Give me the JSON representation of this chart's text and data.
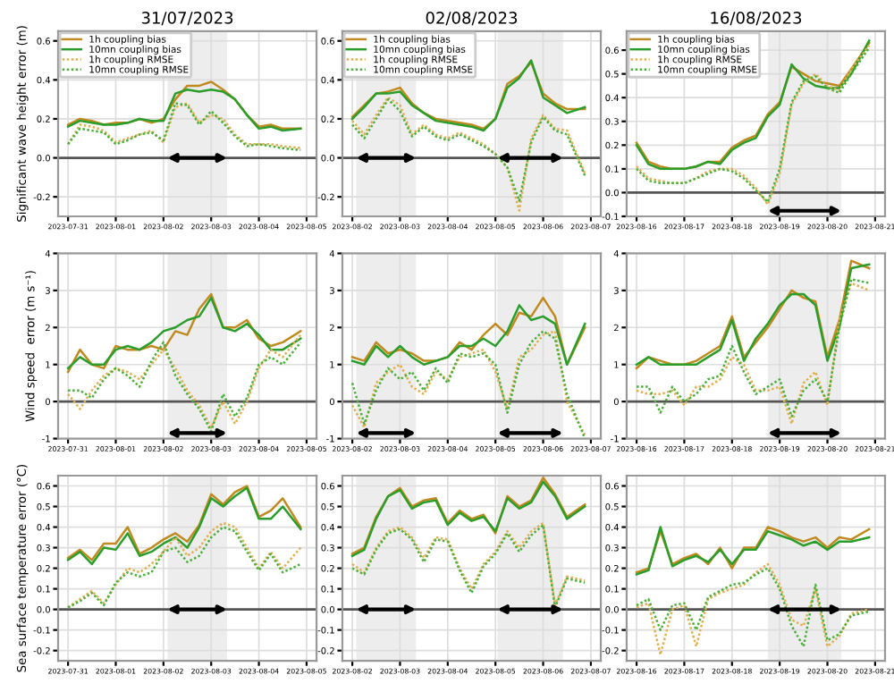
{
  "chart_data": [
    {
      "type": "line",
      "title": "31/07/2023",
      "ylabel": "Significant wave height error (m)",
      "legend": "top left",
      "grid": true,
      "x": [
        "2023-07-31T00:00",
        "2023-07-31T06:00",
        "2023-07-31T12:00",
        "2023-07-31T18:00",
        "2023-08-01T00:00",
        "2023-08-01T06:00",
        "2023-08-01T12:00",
        "2023-08-01T18:00",
        "2023-08-02T00:00",
        "2023-08-02T06:00",
        "2023-08-02T12:00",
        "2023-08-02T18:00",
        "2023-08-03T00:00",
        "2023-08-03T06:00",
        "2023-08-03T12:00",
        "2023-08-03T18:00",
        "2023-08-04T00:00",
        "2023-08-04T06:00",
        "2023-08-04T12:00",
        "2023-08-04T21:00"
      ],
      "xlim": [
        "2023-07-30T19:00",
        "2023-08-05T05:00"
      ],
      "xticks": [
        "2023-07-31",
        "2023-08-01",
        "2023-08-02",
        "2023-08-03",
        "2023-08-04",
        "2023-08-05"
      ],
      "ylim": [
        -0.3,
        0.65
      ],
      "yticks": [
        {
          "value": -0.2,
          "label": "-0.2"
        },
        {
          "value": 0,
          "label": "0.0"
        },
        0.2,
        0.4,
        0.6
      ],
      "ref_lines": [
        {
          "axis": "y",
          "value": 0,
          "color": "#555555"
        }
      ],
      "bands": [
        {
          "axis": "x",
          "from": "2023-08-02T02:00",
          "to": "2023-08-03T08:00",
          "color": "#000000"
        }
      ],
      "series": [
        {
          "name": "1h coupling bias",
          "color": "#c08a20",
          "line_style": "solid",
          "values": [
            0.17,
            0.2,
            0.19,
            0.17,
            0.18,
            0.18,
            0.2,
            0.18,
            0.2,
            0.3,
            0.37,
            0.37,
            0.39,
            0.35,
            0.3,
            0.22,
            0.16,
            0.17,
            0.15,
            0.15
          ]
        },
        {
          "name": "10mn coupling bias",
          "color": "#2a9d2a",
          "line_style": "solid",
          "values": [
            0.16,
            0.19,
            0.18,
            0.17,
            0.17,
            0.18,
            0.2,
            0.19,
            0.19,
            0.33,
            0.35,
            0.34,
            0.35,
            0.34,
            0.3,
            0.22,
            0.15,
            0.16,
            0.14,
            0.15
          ]
        },
        {
          "name": "1h coupling RMSE",
          "color": "#e0b050",
          "line_style": "dotted",
          "values": [
            0.07,
            0.17,
            0.16,
            0.14,
            0.08,
            0.1,
            0.12,
            0.14,
            0.08,
            0.26,
            0.28,
            0.18,
            0.22,
            0.2,
            0.12,
            0.07,
            0.07,
            0.07,
            0.06,
            0.05
          ]
        },
        {
          "name": "10mn coupling RMSE",
          "color": "#4caf3c",
          "line_style": "dotted",
          "values": [
            0.07,
            0.15,
            0.14,
            0.13,
            0.07,
            0.09,
            0.12,
            0.13,
            0.09,
            0.28,
            0.27,
            0.17,
            0.24,
            0.18,
            0.11,
            0.06,
            0.07,
            0.06,
            0.05,
            0.04
          ]
        }
      ]
    },
    {
      "type": "line",
      "title": "02/08/2023",
      "legend": "top left",
      "grid": true,
      "x": [
        "2023-08-02T00:00",
        "2023-08-02T06:00",
        "2023-08-02T12:00",
        "2023-08-02T18:00",
        "2023-08-03T00:00",
        "2023-08-03T06:00",
        "2023-08-03T12:00",
        "2023-08-03T18:00",
        "2023-08-04T00:00",
        "2023-08-04T06:00",
        "2023-08-04T12:00",
        "2023-08-04T18:00",
        "2023-08-05T00:00",
        "2023-08-05T06:00",
        "2023-08-05T12:00",
        "2023-08-05T18:00",
        "2023-08-06T00:00",
        "2023-08-06T06:00",
        "2023-08-06T12:00",
        "2023-08-06T21:00"
      ],
      "xlim": [
        "2023-08-01T19:00",
        "2023-08-07T05:00"
      ],
      "xticks": [
        "2023-08-02",
        "2023-08-03",
        "2023-08-04",
        "2023-08-05",
        "2023-08-06",
        "2023-08-07"
      ],
      "ylim": [
        -0.3,
        0.65
      ],
      "yticks": [
        {
          "value": -0.2,
          "label": "-0.2"
        },
        {
          "value": 0,
          "label": "0.0"
        },
        0.2,
        0.4,
        0.6
      ],
      "ref_lines": [
        {
          "axis": "y",
          "value": 0,
          "color": "#555555"
        }
      ],
      "bands": [
        {
          "axis": "x",
          "from": "2023-08-02T02:00",
          "to": "2023-08-03T08:00",
          "color": "#000000"
        },
        {
          "axis": "x",
          "from": "2023-08-05T01:00",
          "to": "2023-08-06T10:00",
          "color": "#000000"
        }
      ],
      "series": [
        {
          "name": "1h coupling bias",
          "color": "#c08a20",
          "line_style": "solid",
          "values": [
            0.21,
            0.27,
            0.33,
            0.34,
            0.36,
            0.28,
            0.23,
            0.2,
            0.19,
            0.18,
            0.17,
            0.15,
            0.2,
            0.38,
            0.42,
            0.49,
            0.33,
            0.28,
            0.25,
            0.25
          ]
        },
        {
          "name": "10mn coupling bias",
          "color": "#2a9d2a",
          "line_style": "solid",
          "values": [
            0.2,
            0.26,
            0.33,
            0.33,
            0.34,
            0.27,
            0.23,
            0.19,
            0.18,
            0.17,
            0.16,
            0.14,
            0.2,
            0.36,
            0.41,
            0.5,
            0.31,
            0.27,
            0.23,
            0.26
          ]
        },
        {
          "name": "1h coupling RMSE",
          "color": "#e0b050",
          "line_style": "dotted",
          "values": [
            0.19,
            0.12,
            0.22,
            0.31,
            0.27,
            0.12,
            0.17,
            0.12,
            0.1,
            0.13,
            0.1,
            0.07,
            0.02,
            -0.05,
            -0.27,
            0.1,
            0.22,
            0.15,
            0.14,
            -0.08
          ]
        },
        {
          "name": "10mn coupling RMSE",
          "color": "#4caf3c",
          "line_style": "dotted",
          "values": [
            0.17,
            0.1,
            0.2,
            0.3,
            0.24,
            0.11,
            0.16,
            0.11,
            0.09,
            0.12,
            0.09,
            0.06,
            0.02,
            -0.05,
            -0.22,
            0.08,
            0.21,
            0.14,
            0.12,
            -0.09
          ]
        }
      ]
    },
    {
      "type": "line",
      "title": "16/08/2023",
      "legend": "top left",
      "grid": true,
      "x": [
        "2023-08-16T00:00",
        "2023-08-16T06:00",
        "2023-08-16T12:00",
        "2023-08-16T18:00",
        "2023-08-17T00:00",
        "2023-08-17T06:00",
        "2023-08-17T12:00",
        "2023-08-17T18:00",
        "2023-08-18T00:00",
        "2023-08-18T06:00",
        "2023-08-18T12:00",
        "2023-08-18T18:00",
        "2023-08-19T00:00",
        "2023-08-19T06:00",
        "2023-08-19T12:00",
        "2023-08-19T18:00",
        "2023-08-20T00:00",
        "2023-08-20T06:00",
        "2023-08-20T12:00",
        "2023-08-20T21:00"
      ],
      "xlim": [
        "2023-08-15T19:00",
        "2023-08-21T05:00"
      ],
      "xticks": [
        "2023-08-16",
        "2023-08-17",
        "2023-08-18",
        "2023-08-19",
        "2023-08-20",
        "2023-08-21"
      ],
      "ylim": [
        -0.1,
        0.68
      ],
      "yticks": [
        {
          "value": -0.1,
          "label": "-0.1"
        },
        {
          "value": 0,
          "label": "0.0"
        },
        0.1,
        0.2,
        0.3,
        0.4,
        0.5,
        0.6
      ],
      "ref_lines": [
        {
          "axis": "y",
          "value": 0,
          "color": "#555555"
        }
      ],
      "bands": [
        {
          "axis": "x",
          "from": "2023-08-18T18:00",
          "to": "2023-08-20T07:00",
          "color": "#000000"
        }
      ],
      "series": [
        {
          "name": "1h coupling bias",
          "color": "#c08a20",
          "line_style": "solid",
          "values": [
            0.21,
            0.13,
            0.11,
            0.1,
            0.1,
            0.11,
            0.13,
            0.13,
            0.19,
            0.22,
            0.24,
            0.33,
            0.38,
            0.53,
            0.5,
            0.47,
            0.46,
            0.45,
            0.52,
            0.63
          ]
        },
        {
          "name": "10mn coupling bias",
          "color": "#2a9d2a",
          "line_style": "solid",
          "values": [
            0.2,
            0.12,
            0.1,
            0.1,
            0.1,
            0.11,
            0.13,
            0.12,
            0.18,
            0.21,
            0.23,
            0.32,
            0.37,
            0.54,
            0.48,
            0.45,
            0.44,
            0.44,
            0.5,
            0.64
          ]
        },
        {
          "name": "1h coupling RMSE",
          "color": "#e0b050",
          "line_style": "dotted",
          "values": [
            0.11,
            0.06,
            0.05,
            0.04,
            0.04,
            0.06,
            0.09,
            0.1,
            0.1,
            0.07,
            0.02,
            -0.05,
            0.08,
            0.37,
            0.46,
            0.5,
            0.45,
            0.43,
            0.52,
            0.62
          ]
        },
        {
          "name": "10mn coupling RMSE",
          "color": "#4caf3c",
          "line_style": "dotted",
          "values": [
            0.1,
            0.05,
            0.04,
            0.04,
            0.04,
            0.06,
            0.08,
            0.1,
            0.09,
            0.06,
            0.01,
            -0.04,
            0.1,
            0.38,
            0.47,
            0.49,
            0.44,
            0.42,
            0.5,
            0.61
          ]
        }
      ]
    },
    {
      "type": "line",
      "ylabel": "Wind speed  error (m s⁻¹)",
      "grid": true,
      "x": [
        "2023-07-31T00:00",
        "2023-07-31T06:00",
        "2023-07-31T12:00",
        "2023-07-31T18:00",
        "2023-08-01T00:00",
        "2023-08-01T06:00",
        "2023-08-01T12:00",
        "2023-08-01T18:00",
        "2023-08-02T00:00",
        "2023-08-02T06:00",
        "2023-08-02T12:00",
        "2023-08-02T18:00",
        "2023-08-03T00:00",
        "2023-08-03T06:00",
        "2023-08-03T12:00",
        "2023-08-03T18:00",
        "2023-08-04T00:00",
        "2023-08-04T06:00",
        "2023-08-04T12:00",
        "2023-08-04T21:00"
      ],
      "xlim": [
        "2023-07-30T19:00",
        "2023-08-05T05:00"
      ],
      "xticks": [
        "2023-07-31",
        "2023-08-01",
        "2023-08-02",
        "2023-08-03",
        "2023-08-04",
        "2023-08-05"
      ],
      "ylim": [
        -1,
        4
      ],
      "yticks": [
        -1,
        0,
        1,
        2,
        3,
        4
      ],
      "ref_lines": [
        {
          "axis": "y",
          "value": 0,
          "color": "#555555"
        }
      ],
      "bands": [
        {
          "axis": "x",
          "from": "2023-08-02T02:00",
          "to": "2023-08-03T08:00",
          "color": "#000000"
        }
      ],
      "series": [
        {
          "color": "#c08a20",
          "line_style": "solid",
          "values": [
            0.8,
            1.4,
            1.0,
            0.9,
            1.5,
            1.4,
            1.4,
            1.5,
            1.4,
            1.9,
            1.8,
            2.5,
            2.9,
            2.0,
            2.0,
            2.2,
            1.7,
            1.5,
            1.6,
            1.9
          ]
        },
        {
          "color": "#2a9d2a",
          "line_style": "solid",
          "values": [
            0.9,
            1.2,
            1.0,
            1.0,
            1.4,
            1.5,
            1.4,
            1.6,
            1.9,
            2.0,
            2.2,
            2.3,
            2.8,
            2.0,
            1.9,
            2.1,
            1.8,
            1.4,
            1.4,
            1.7
          ]
        },
        {
          "color": "#e0b050",
          "line_style": "dotted",
          "values": [
            0.2,
            -0.2,
            0.3,
            0.7,
            0.9,
            0.8,
            0.6,
            1.0,
            1.4,
            0.9,
            0.3,
            -0.1,
            -0.7,
            0.0,
            -0.6,
            0.0,
            0.9,
            1.4,
            1.2,
            1.8
          ]
        },
        {
          "color": "#4caf3c",
          "line_style": "dotted",
          "values": [
            0.3,
            0.3,
            0.1,
            0.6,
            0.9,
            0.7,
            0.4,
            1.1,
            1.6,
            0.7,
            0.2,
            -0.2,
            -0.8,
            0.2,
            -0.4,
            0.1,
            1.0,
            1.2,
            1.0,
            1.6
          ]
        }
      ]
    },
    {
      "type": "line",
      "grid": true,
      "x": [
        "2023-08-02T00:00",
        "2023-08-02T06:00",
        "2023-08-02T12:00",
        "2023-08-02T18:00",
        "2023-08-03T00:00",
        "2023-08-03T06:00",
        "2023-08-03T12:00",
        "2023-08-03T18:00",
        "2023-08-04T00:00",
        "2023-08-04T06:00",
        "2023-08-04T12:00",
        "2023-08-04T18:00",
        "2023-08-05T00:00",
        "2023-08-05T06:00",
        "2023-08-05T12:00",
        "2023-08-05T18:00",
        "2023-08-06T00:00",
        "2023-08-06T06:00",
        "2023-08-06T12:00",
        "2023-08-06T21:00"
      ],
      "xlim": [
        "2023-08-01T19:00",
        "2023-08-07T05:00"
      ],
      "xticks": [
        "2023-08-02",
        "2023-08-03",
        "2023-08-04",
        "2023-08-05",
        "2023-08-06",
        "2023-08-07"
      ],
      "ylim": [
        -1,
        4
      ],
      "yticks": [
        -1,
        0,
        1,
        2,
        3,
        4
      ],
      "ref_lines": [
        {
          "axis": "y",
          "value": 0,
          "color": "#555555"
        }
      ],
      "bands": [
        {
          "axis": "x",
          "from": "2023-08-02T02:00",
          "to": "2023-08-03T08:00",
          "color": "#000000"
        },
        {
          "axis": "x",
          "from": "2023-08-05T01:00",
          "to": "2023-08-06T10:00",
          "color": "#000000"
        }
      ],
      "series": [
        {
          "color": "#c08a20",
          "line_style": "solid",
          "values": [
            1.2,
            1.1,
            1.6,
            1.3,
            1.4,
            1.3,
            1.1,
            1.1,
            1.2,
            1.6,
            1.4,
            1.8,
            2.1,
            1.8,
            2.4,
            2.3,
            2.8,
            2.3,
            1.0,
            2.0
          ]
        },
        {
          "color": "#2a9d2a",
          "line_style": "solid",
          "values": [
            1.1,
            1.0,
            1.5,
            1.2,
            1.5,
            1.2,
            1.0,
            1.1,
            1.2,
            1.5,
            1.5,
            1.7,
            1.5,
            1.9,
            2.6,
            2.2,
            2.3,
            2.1,
            1.0,
            2.1
          ]
        },
        {
          "color": "#e0b050",
          "line_style": "dotted",
          "values": [
            -0.1,
            -0.7,
            0.5,
            0.8,
            1.0,
            0.4,
            0.2,
            0.8,
            0.6,
            1.2,
            1.3,
            1.4,
            0.8,
            -0.2,
            1.2,
            1.4,
            1.8,
            1.9,
            0.0,
            -0.9
          ]
        },
        {
          "color": "#4caf3c",
          "line_style": "dotted",
          "values": [
            0.5,
            -0.6,
            0.3,
            0.9,
            0.6,
            0.8,
            0.3,
            0.9,
            0.5,
            1.3,
            1.2,
            1.3,
            1.0,
            -0.3,
            1.0,
            1.6,
            1.9,
            1.7,
            0.2,
            -1.0
          ]
        }
      ]
    },
    {
      "type": "line",
      "grid": true,
      "x": [
        "2023-08-16T00:00",
        "2023-08-16T06:00",
        "2023-08-16T12:00",
        "2023-08-16T18:00",
        "2023-08-17T00:00",
        "2023-08-17T06:00",
        "2023-08-17T12:00",
        "2023-08-17T18:00",
        "2023-08-18T00:00",
        "2023-08-18T06:00",
        "2023-08-18T12:00",
        "2023-08-18T18:00",
        "2023-08-19T00:00",
        "2023-08-19T06:00",
        "2023-08-19T12:00",
        "2023-08-19T18:00",
        "2023-08-20T00:00",
        "2023-08-20T06:00",
        "2023-08-20T12:00",
        "2023-08-20T21:00"
      ],
      "xlim": [
        "2023-08-15T19:00",
        "2023-08-21T05:00"
      ],
      "xticks": [
        "2023-08-16",
        "2023-08-17",
        "2023-08-18",
        "2023-08-19",
        "2023-08-20",
        "2023-08-21"
      ],
      "ylim": [
        -1,
        4
      ],
      "yticks": [
        -1,
        0,
        1,
        2,
        3,
        4
      ],
      "ref_lines": [
        {
          "axis": "y",
          "value": 0,
          "color": "#555555"
        }
      ],
      "bands": [
        {
          "axis": "x",
          "from": "2023-08-18T18:00",
          "to": "2023-08-20T07:00",
          "color": "#000000"
        }
      ],
      "series": [
        {
          "color": "#c08a20",
          "line_style": "solid",
          "values": [
            0.9,
            1.2,
            1.1,
            1.0,
            1.0,
            1.1,
            1.3,
            1.5,
            2.3,
            1.2,
            1.6,
            2.0,
            2.5,
            3.0,
            2.8,
            2.7,
            1.2,
            2.2,
            3.8,
            3.6
          ]
        },
        {
          "color": "#2a9d2a",
          "line_style": "solid",
          "values": [
            1.0,
            1.2,
            1.0,
            1.0,
            1.0,
            1.0,
            1.2,
            1.4,
            2.2,
            1.1,
            1.7,
            2.1,
            2.6,
            2.9,
            2.9,
            2.6,
            1.1,
            2.0,
            3.6,
            3.7
          ]
        },
        {
          "color": "#e0b050",
          "line_style": "dotted",
          "values": [
            0.3,
            0.2,
            0.2,
            0.3,
            -0.1,
            0.4,
            0.4,
            0.6,
            1.2,
            1.0,
            0.3,
            0.3,
            0.4,
            -0.6,
            0.5,
            0.8,
            -0.1,
            2.2,
            3.2,
            3.0
          ]
        },
        {
          "color": "#4caf3c",
          "line_style": "dotted",
          "values": [
            0.4,
            0.4,
            -0.3,
            0.4,
            0.0,
            0.2,
            0.6,
            0.7,
            1.5,
            0.8,
            0.2,
            0.4,
            0.6,
            -0.4,
            0.3,
            0.6,
            0.0,
            2.0,
            3.3,
            3.2
          ]
        }
      ]
    },
    {
      "type": "line",
      "ylabel": "Sea surface temperature error (°C)",
      "grid": true,
      "x": [
        "2023-07-31T00:00",
        "2023-07-31T06:00",
        "2023-07-31T12:00",
        "2023-07-31T18:00",
        "2023-08-01T00:00",
        "2023-08-01T06:00",
        "2023-08-01T12:00",
        "2023-08-01T18:00",
        "2023-08-02T00:00",
        "2023-08-02T06:00",
        "2023-08-02T12:00",
        "2023-08-02T18:00",
        "2023-08-03T00:00",
        "2023-08-03T06:00",
        "2023-08-03T12:00",
        "2023-08-03T18:00",
        "2023-08-04T00:00",
        "2023-08-04T06:00",
        "2023-08-04T12:00",
        "2023-08-04T21:00"
      ],
      "xlim": [
        "2023-07-30T19:00",
        "2023-08-05T05:00"
      ],
      "xticks": [
        "2023-07-31",
        "2023-08-01",
        "2023-08-02",
        "2023-08-03",
        "2023-08-04",
        "2023-08-05"
      ],
      "ylim": [
        -0.25,
        0.65
      ],
      "yticks": [
        {
          "value": -0.2,
          "label": "-0.2"
        },
        {
          "value": -0.1,
          "label": "-0.1"
        },
        {
          "value": 0,
          "label": "0.0"
        },
        0.1,
        0.2,
        0.3,
        0.4,
        0.5,
        0.6
      ],
      "ref_lines": [
        {
          "axis": "y",
          "value": 0,
          "color": "#555555"
        }
      ],
      "bands": [
        {
          "axis": "x",
          "from": "2023-08-02T02:00",
          "to": "2023-08-03T08:00",
          "color": "#000000"
        }
      ],
      "series": [
        {
          "color": "#c08a20",
          "line_style": "solid",
          "values": [
            0.25,
            0.29,
            0.24,
            0.32,
            0.32,
            0.4,
            0.27,
            0.3,
            0.34,
            0.37,
            0.33,
            0.41,
            0.56,
            0.51,
            0.57,
            0.6,
            0.45,
            0.48,
            0.54,
            0.4
          ]
        },
        {
          "color": "#2a9d2a",
          "line_style": "solid",
          "values": [
            0.24,
            0.28,
            0.22,
            0.3,
            0.29,
            0.37,
            0.26,
            0.28,
            0.32,
            0.35,
            0.3,
            0.4,
            0.54,
            0.5,
            0.55,
            0.59,
            0.44,
            0.44,
            0.5,
            0.39
          ]
        },
        {
          "color": "#e0b050",
          "line_style": "dotted",
          "values": [
            0.01,
            0.05,
            0.09,
            0.03,
            0.12,
            0.2,
            0.18,
            0.22,
            0.28,
            0.35,
            0.26,
            0.3,
            0.38,
            0.42,
            0.4,
            0.3,
            0.2,
            0.28,
            0.2,
            0.3
          ]
        },
        {
          "color": "#4caf3c",
          "line_style": "dotted",
          "values": [
            0.01,
            0.04,
            0.08,
            0.02,
            0.13,
            0.18,
            0.16,
            0.18,
            0.28,
            0.3,
            0.23,
            0.26,
            0.35,
            0.4,
            0.38,
            0.28,
            0.19,
            0.27,
            0.18,
            0.22
          ]
        }
      ]
    },
    {
      "type": "line",
      "grid": true,
      "x": [
        "2023-08-02T00:00",
        "2023-08-02T06:00",
        "2023-08-02T12:00",
        "2023-08-02T18:00",
        "2023-08-03T00:00",
        "2023-08-03T06:00",
        "2023-08-03T12:00",
        "2023-08-03T18:00",
        "2023-08-04T00:00",
        "2023-08-04T06:00",
        "2023-08-04T12:00",
        "2023-08-04T18:00",
        "2023-08-05T00:00",
        "2023-08-05T06:00",
        "2023-08-05T12:00",
        "2023-08-05T18:00",
        "2023-08-06T00:00",
        "2023-08-06T06:00",
        "2023-08-06T12:00",
        "2023-08-06T21:00"
      ],
      "xlim": [
        "2023-08-01T19:00",
        "2023-08-07T05:00"
      ],
      "xticks": [
        "2023-08-02",
        "2023-08-03",
        "2023-08-04",
        "2023-08-05",
        "2023-08-06",
        "2023-08-07"
      ],
      "ylim": [
        -0.25,
        0.65
      ],
      "yticks": [
        {
          "value": -0.2,
          "label": "-0.2"
        },
        {
          "value": -0.1,
          "label": "-0.1"
        },
        {
          "value": 0,
          "label": "0.0"
        },
        0.1,
        0.2,
        0.3,
        0.4,
        0.5,
        0.6
      ],
      "ref_lines": [
        {
          "axis": "y",
          "value": 0,
          "color": "#555555"
        }
      ],
      "bands": [
        {
          "axis": "x",
          "from": "2023-08-02T02:00",
          "to": "2023-08-03T08:00",
          "color": "#000000"
        },
        {
          "axis": "x",
          "from": "2023-08-05T01:00",
          "to": "2023-08-06T10:00",
          "color": "#000000"
        }
      ],
      "series": [
        {
          "color": "#c08a20",
          "line_style": "solid",
          "values": [
            0.27,
            0.3,
            0.45,
            0.55,
            0.59,
            0.5,
            0.53,
            0.54,
            0.42,
            0.48,
            0.44,
            0.46,
            0.37,
            0.55,
            0.5,
            0.53,
            0.64,
            0.56,
            0.45,
            0.51
          ]
        },
        {
          "color": "#2a9d2a",
          "line_style": "solid",
          "values": [
            0.26,
            0.29,
            0.44,
            0.55,
            0.58,
            0.49,
            0.52,
            0.53,
            0.41,
            0.47,
            0.43,
            0.45,
            0.38,
            0.54,
            0.49,
            0.52,
            0.62,
            0.55,
            0.44,
            0.5
          ]
        },
        {
          "color": "#e0b050",
          "line_style": "dotted",
          "values": [
            0.22,
            0.18,
            0.3,
            0.38,
            0.4,
            0.35,
            0.25,
            0.35,
            0.34,
            0.2,
            0.1,
            0.22,
            0.28,
            0.38,
            0.3,
            0.38,
            0.42,
            0.02,
            0.16,
            0.14
          ]
        },
        {
          "color": "#4caf3c",
          "line_style": "dotted",
          "values": [
            0.2,
            0.17,
            0.29,
            0.37,
            0.39,
            0.34,
            0.23,
            0.34,
            0.33,
            0.19,
            0.08,
            0.21,
            0.27,
            0.37,
            0.28,
            0.36,
            0.41,
            0.01,
            0.15,
            0.13
          ]
        }
      ]
    },
    {
      "type": "line",
      "grid": true,
      "x": [
        "2023-08-16T00:00",
        "2023-08-16T06:00",
        "2023-08-16T12:00",
        "2023-08-16T18:00",
        "2023-08-17T00:00",
        "2023-08-17T06:00",
        "2023-08-17T12:00",
        "2023-08-17T18:00",
        "2023-08-18T00:00",
        "2023-08-18T06:00",
        "2023-08-18T12:00",
        "2023-08-18T18:00",
        "2023-08-19T00:00",
        "2023-08-19T06:00",
        "2023-08-19T12:00",
        "2023-08-19T18:00",
        "2023-08-20T00:00",
        "2023-08-20T06:00",
        "2023-08-20T12:00",
        "2023-08-20T21:00"
      ],
      "xlim": [
        "2023-08-15T19:00",
        "2023-08-21T05:00"
      ],
      "xticks": [
        "2023-08-16",
        "2023-08-17",
        "2023-08-18",
        "2023-08-19",
        "2023-08-20",
        "2023-08-21"
      ],
      "ylim": [
        -0.25,
        0.65
      ],
      "yticks": [
        {
          "value": -0.2,
          "label": "-0.2"
        },
        {
          "value": -0.1,
          "label": "-0.1"
        },
        {
          "value": 0,
          "label": "0.0"
        },
        0.1,
        0.2,
        0.3,
        0.4,
        0.5,
        0.6
      ],
      "ref_lines": [
        {
          "axis": "y",
          "value": 0,
          "color": "#555555"
        }
      ],
      "bands": [
        {
          "axis": "x",
          "from": "2023-08-18T18:00",
          "to": "2023-08-20T07:00",
          "color": "#000000"
        }
      ],
      "series": [
        {
          "color": "#c08a20",
          "line_style": "solid",
          "values": [
            0.18,
            0.2,
            0.38,
            0.22,
            0.25,
            0.27,
            0.22,
            0.3,
            0.2,
            0.3,
            0.3,
            0.4,
            0.38,
            0.35,
            0.33,
            0.35,
            0.3,
            0.35,
            0.34,
            0.39
          ]
        },
        {
          "color": "#2a9d2a",
          "line_style": "solid",
          "values": [
            0.17,
            0.19,
            0.4,
            0.21,
            0.24,
            0.26,
            0.23,
            0.29,
            0.22,
            0.29,
            0.29,
            0.38,
            0.36,
            0.34,
            0.31,
            0.33,
            0.29,
            0.33,
            0.33,
            0.35
          ]
        },
        {
          "color": "#e0b050",
          "line_style": "dotted",
          "values": [
            0.01,
            0.03,
            -0.22,
            0.0,
            0.02,
            -0.18,
            0.05,
            0.08,
            0.1,
            0.12,
            0.18,
            0.22,
            0.12,
            -0.05,
            -0.08,
            0.1,
            -0.18,
            -0.13,
            -0.02,
            0.0
          ]
        },
        {
          "color": "#4caf3c",
          "line_style": "dotted",
          "values": [
            0.02,
            0.05,
            -0.1,
            0.02,
            0.03,
            -0.1,
            0.06,
            0.09,
            0.12,
            0.13,
            0.17,
            0.2,
            0.1,
            -0.08,
            -0.18,
            0.12,
            -0.15,
            -0.12,
            -0.03,
            -0.01
          ]
        }
      ]
    }
  ]
}
